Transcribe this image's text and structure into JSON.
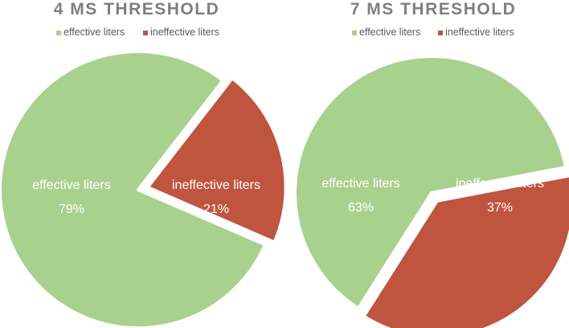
{
  "chart_data": [
    {
      "type": "pie",
      "title": "4 MS THRESHOLD",
      "legend_position": "top",
      "categories": [
        "effective liters",
        "ineffective liters"
      ],
      "values": [
        79,
        21
      ],
      "value_labels": [
        "79%",
        "21%"
      ],
      "colors": [
        "#a9d18e",
        "#c0553f"
      ],
      "exploded": [
        false,
        true
      ]
    },
    {
      "type": "pie",
      "title": "7 MS THRESHOLD",
      "legend_position": "top",
      "categories": [
        "effective liters",
        "ineffective liters"
      ],
      "values": [
        63,
        37
      ],
      "value_labels": [
        "63%",
        "37%"
      ],
      "colors": [
        "#a9d18e",
        "#c0553f"
      ],
      "exploded": [
        false,
        true
      ]
    }
  ]
}
